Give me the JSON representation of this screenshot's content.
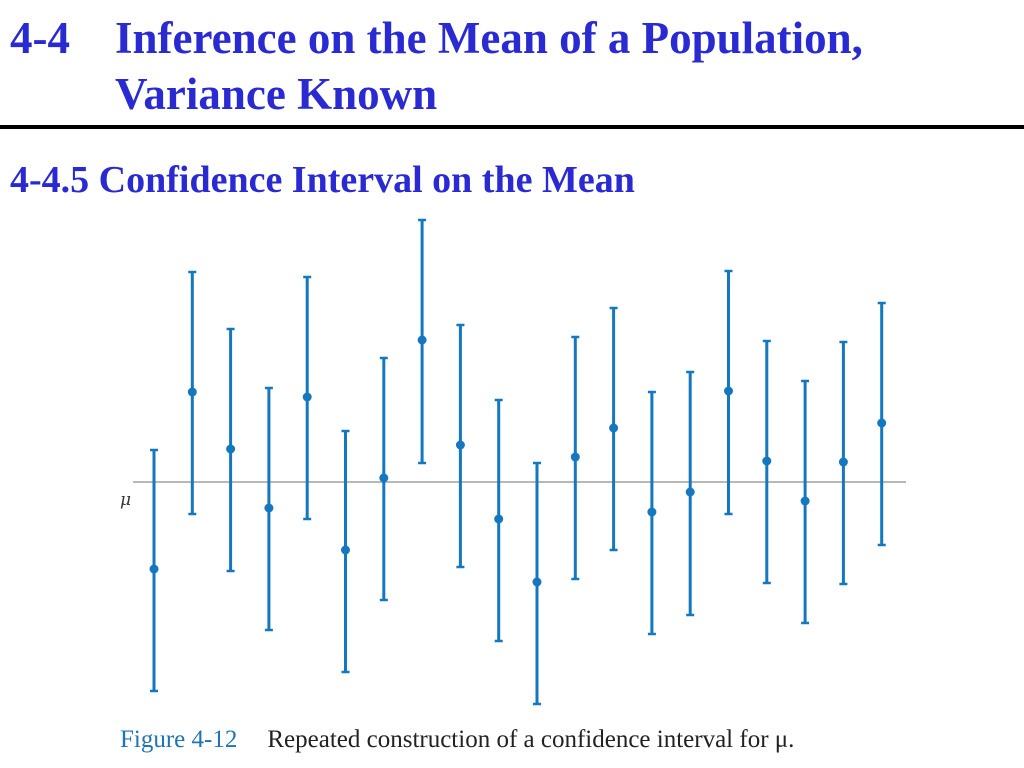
{
  "header": {
    "section_number": "4-4",
    "title": "Inference on the Mean of a Population, Variance Known",
    "subtitle": "4-4.5 Confidence Interval on the Mean"
  },
  "figure": {
    "label": "Figure 4-12",
    "caption": "Repeated construction of a confidence interval for μ."
  },
  "colors": {
    "title": "#2a2ad2",
    "interval": "#1577bf",
    "mean_line": "#b8b8b8",
    "caption_label": "#1f74b5"
  },
  "chart_data": {
    "type": "interval",
    "reference_line": {
      "label": "μ",
      "value": 0
    },
    "intervals": [
      {
        "estimate": -0.87,
        "lower": -2.09,
        "upper": 0.32
      },
      {
        "estimate": 0.9,
        "lower": -0.32,
        "upper": 2.1
      },
      {
        "estimate": 0.33,
        "lower": -0.89,
        "upper": 1.53
      },
      {
        "estimate": -0.26,
        "lower": -1.48,
        "upper": 0.94
      },
      {
        "estimate": 0.85,
        "lower": -0.37,
        "upper": 2.05
      },
      {
        "estimate": -0.68,
        "lower": -1.9,
        "upper": 0.51
      },
      {
        "estimate": 0.04,
        "lower": -1.18,
        "upper": 1.24
      },
      {
        "estimate": 1.42,
        "lower": 0.19,
        "upper": 2.62
      },
      {
        "estimate": 0.37,
        "lower": -0.85,
        "upper": 1.57
      },
      {
        "estimate": -0.37,
        "lower": -1.59,
        "upper": 0.82
      },
      {
        "estimate": -1.0,
        "lower": -2.22,
        "upper": 0.19
      },
      {
        "estimate": 0.25,
        "lower": -0.97,
        "upper": 1.45
      },
      {
        "estimate": 0.54,
        "lower": -0.68,
        "upper": 1.74
      },
      {
        "estimate": -0.3,
        "lower": -1.52,
        "upper": 0.9
      },
      {
        "estimate": -0.1,
        "lower": -1.33,
        "upper": 1.1
      },
      {
        "estimate": 0.91,
        "lower": -0.32,
        "upper": 2.11
      },
      {
        "estimate": 0.21,
        "lower": -1.01,
        "upper": 1.41
      },
      {
        "estimate": -0.19,
        "lower": -1.41,
        "upper": 1.01
      },
      {
        "estimate": 0.2,
        "lower": -1.02,
        "upper": 1.4
      },
      {
        "estimate": 0.59,
        "lower": -0.63,
        "upper": 1.79
      }
    ]
  }
}
